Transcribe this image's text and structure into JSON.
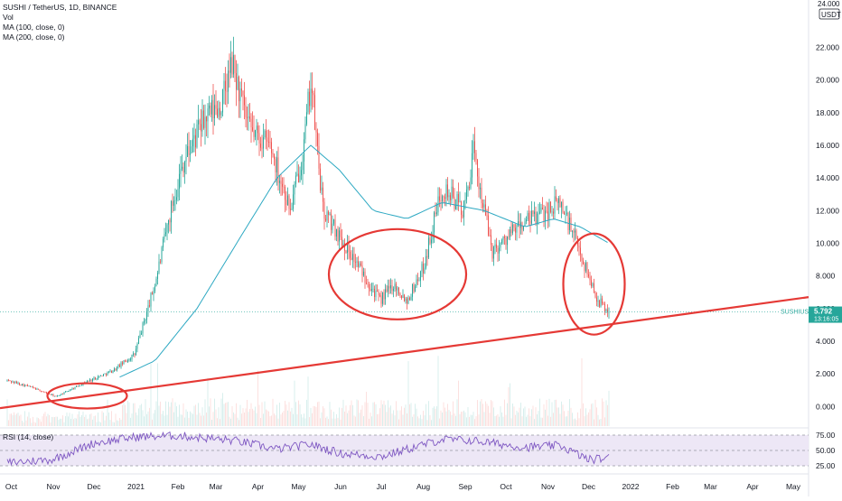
{
  "legend": {
    "symbol": "SUSHI / TetherUS, 1D, BINANCE",
    "vol": "Vol",
    "ma100": "MA (100, close, 0)",
    "ma200": "MA (200, close, 0)",
    "rsi": "RSI (14, close)"
  },
  "price_tag": {
    "ticker": "SUSHIUSDT",
    "price": "5.792",
    "countdown": "13:16:05"
  },
  "colors": {
    "up": "#26a69a",
    "down": "#ef5350",
    "ma_line": "#2ca8c2",
    "annotation": "#e53935",
    "rsi_line": "#7e57c2",
    "rsi_band": "#ede7f6",
    "price_tag": "#26a69a"
  },
  "chart_data": {
    "type": "candlestick",
    "symbol": "SUSHI / TetherUS",
    "interval": "1D",
    "exchange": "BINANCE",
    "y_axis": {
      "range": [
        -1.2,
        24.9
      ],
      "ticks": [
        "0.000",
        "2.000",
        "4.000",
        "6.000",
        "8.000",
        "10.000",
        "12.000",
        "14.000",
        "16.000",
        "18.000",
        "20.000",
        "22.000",
        "24.000"
      ],
      "top_label": "24.000",
      "unit": "USDT"
    },
    "x_axis": {
      "ticks": [
        "Oct",
        "Nov",
        "Dec",
        "2021",
        "Feb",
        "Mar",
        "Apr",
        "May",
        "Jun",
        "Jul",
        "Aug",
        "Sep",
        "Oct",
        "Nov",
        "Dec",
        "2022",
        "Feb",
        "Mar",
        "Apr",
        "May"
      ]
    },
    "approx_close_path": [
      {
        "date": "2020-09-28",
        "close": 1.6
      },
      {
        "date": "2020-10-15",
        "close": 1.2
      },
      {
        "date": "2020-11-03",
        "close": 0.6
      },
      {
        "date": "2020-11-25",
        "close": 1.5
      },
      {
        "date": "2020-12-15",
        "close": 2.2
      },
      {
        "date": "2020-12-31",
        "close": 3.2
      },
      {
        "date": "2021-01-15",
        "close": 7.5
      },
      {
        "date": "2021-01-28",
        "close": 12.5
      },
      {
        "date": "2021-02-05",
        "close": 15.0
      },
      {
        "date": "2021-02-20",
        "close": 17.5
      },
      {
        "date": "2021-03-05",
        "close": 18.5
      },
      {
        "date": "2021-03-13",
        "close": 21.0
      },
      {
        "date": "2021-03-25",
        "close": 17.0
      },
      {
        "date": "2021-04-10",
        "close": 16.0
      },
      {
        "date": "2021-04-25",
        "close": 12.0
      },
      {
        "date": "2021-05-05",
        "close": 16.0
      },
      {
        "date": "2021-05-10",
        "close": 20.0
      },
      {
        "date": "2021-05-19",
        "close": 12.0
      },
      {
        "date": "2021-05-31",
        "close": 10.5
      },
      {
        "date": "2021-06-15",
        "close": 8.5
      },
      {
        "date": "2021-06-30",
        "close": 6.5
      },
      {
        "date": "2021-07-10",
        "close": 7.5
      },
      {
        "date": "2021-07-20",
        "close": 6.5
      },
      {
        "date": "2021-08-01",
        "close": 8.5
      },
      {
        "date": "2021-08-15",
        "close": 13.5
      },
      {
        "date": "2021-08-31",
        "close": 12.0
      },
      {
        "date": "2021-09-07",
        "close": 15.5
      },
      {
        "date": "2021-09-21",
        "close": 9.5
      },
      {
        "date": "2021-10-10",
        "close": 11.0
      },
      {
        "date": "2021-10-31",
        "close": 12.0
      },
      {
        "date": "2021-11-10",
        "close": 12.5
      },
      {
        "date": "2021-11-20",
        "close": 10.5
      },
      {
        "date": "2021-12-01",
        "close": 8.0
      },
      {
        "date": "2021-12-08",
        "close": 6.5
      },
      {
        "date": "2021-12-16",
        "close": 5.792
      }
    ],
    "ma_path": [
      {
        "date": "2020-12-20",
        "value": 1.8
      },
      {
        "date": "2021-01-15",
        "value": 2.8
      },
      {
        "date": "2021-02-15",
        "value": 6.0
      },
      {
        "date": "2021-03-20",
        "value": 10.5
      },
      {
        "date": "2021-04-15",
        "value": 14.0
      },
      {
        "date": "2021-05-10",
        "value": 16.0
      },
      {
        "date": "2021-05-31",
        "value": 14.5
      },
      {
        "date": "2021-06-25",
        "value": 12.0
      },
      {
        "date": "2021-07-20",
        "value": 11.5
      },
      {
        "date": "2021-08-15",
        "value": 12.5
      },
      {
        "date": "2021-09-15",
        "value": 12.0
      },
      {
        "date": "2021-10-15",
        "value": 11.0
      },
      {
        "date": "2021-11-05",
        "value": 11.5
      },
      {
        "date": "2021-11-25",
        "value": 11.0
      },
      {
        "date": "2021-12-16",
        "value": 10.0
      }
    ],
    "rsi": {
      "levels": [
        75.0,
        50.0,
        25.0
      ],
      "level_labels": [
        "75.00",
        "50.00",
        "25.00"
      ],
      "approx_path": [
        {
          "date": "2020-09-28",
          "value": 30
        },
        {
          "date": "2020-10-31",
          "value": 35
        },
        {
          "date": "2020-12-01",
          "value": 62
        },
        {
          "date": "2021-01-01",
          "value": 72
        },
        {
          "date": "2021-02-01",
          "value": 74
        },
        {
          "date": "2021-03-15",
          "value": 66
        },
        {
          "date": "2021-04-15",
          "value": 52
        },
        {
          "date": "2021-05-10",
          "value": 60
        },
        {
          "date": "2021-06-01",
          "value": 45
        },
        {
          "date": "2021-07-01",
          "value": 40
        },
        {
          "date": "2021-08-15",
          "value": 68
        },
        {
          "date": "2021-09-07",
          "value": 66
        },
        {
          "date": "2021-10-15",
          "value": 55
        },
        {
          "date": "2021-11-10",
          "value": 58
        },
        {
          "date": "2021-12-01",
          "value": 35
        },
        {
          "date": "2021-12-16",
          "value": 38
        }
      ]
    }
  }
}
